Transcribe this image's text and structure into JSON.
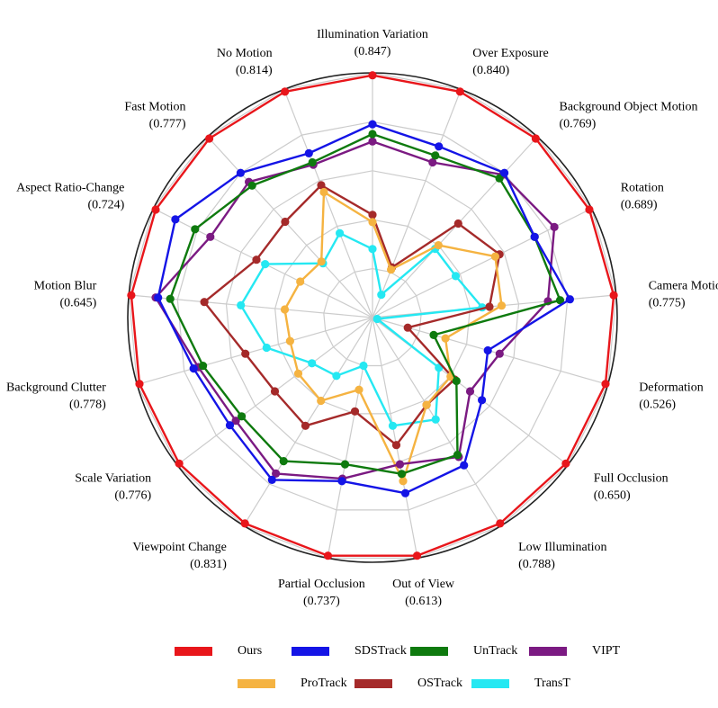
{
  "chart_data": {
    "type": "radar",
    "title": "",
    "categories": [
      {
        "name": "Illumination Variation",
        "value": "(0.847)"
      },
      {
        "name": "Over Exposure",
        "value": "(0.840)"
      },
      {
        "name": "Background Object Motion",
        "value": "(0.769)"
      },
      {
        "name": "Rotation",
        "value": "(0.689)"
      },
      {
        "name": "Camera Motion",
        "value": "(0.775)"
      },
      {
        "name": "Deformation",
        "value": "(0.526)"
      },
      {
        "name": "Full Occlusion",
        "value": "(0.650)"
      },
      {
        "name": "Low Illumination",
        "value": "(0.788)"
      },
      {
        "name": "Out of View",
        "value": "(0.613)"
      },
      {
        "name": "Partial Occlusion",
        "value": "(0.737)"
      },
      {
        "name": "Viewpoint Change",
        "value": "(0.831)"
      },
      {
        "name": "Scale Variation",
        "value": "(0.776)"
      },
      {
        "name": "Background Clutter",
        "value": "(0.778)"
      },
      {
        "name": "Motion Blur",
        "value": "(0.645)"
      },
      {
        "name": "Aspect Ratio-Change",
        "value": "(0.724)"
      },
      {
        "name": "Fast Motion",
        "value": "(0.777)"
      },
      {
        "name": "No Motion",
        "value": "(0.814)"
      }
    ],
    "range": [
      0,
      1
    ],
    "grid": true,
    "legend_position": "bottom",
    "series": [
      {
        "name": "Ours",
        "color": "#e8161b",
        "values": [
          0.99,
          0.99,
          0.99,
          0.99,
          0.99,
          0.99,
          0.99,
          0.99,
          0.99,
          0.99,
          0.99,
          0.99,
          0.99,
          0.99,
          0.99,
          0.99,
          0.99
        ]
      },
      {
        "name": "SDSTrack",
        "color": "#1414e6",
        "values": [
          0.79,
          0.75,
          0.8,
          0.74,
          0.81,
          0.49,
          0.56,
          0.71,
          0.73,
          0.68,
          0.78,
          0.73,
          0.76,
          0.88,
          0.9,
          0.8,
          0.72
        ]
      },
      {
        "name": "UnTrack",
        "color": "#0e7a0e",
        "values": [
          0.75,
          0.71,
          0.77,
          0.74,
          0.77,
          0.26,
          0.43,
          0.66,
          0.65,
          0.61,
          0.69,
          0.67,
          0.72,
          0.83,
          0.81,
          0.73,
          0.68
        ]
      },
      {
        "name": "VIPT",
        "color": "#7b1a82",
        "values": [
          0.72,
          0.68,
          0.79,
          0.83,
          0.72,
          0.54,
          0.5,
          0.67,
          0.61,
          0.67,
          0.75,
          0.7,
          0.74,
          0.89,
          0.74,
          0.75,
          0.67
        ]
      },
      {
        "name": "ProTrack",
        "color": "#f5b341",
        "values": [
          0.39,
          0.21,
          0.4,
          0.56,
          0.53,
          0.31,
          0.4,
          0.42,
          0.68,
          0.3,
          0.4,
          0.38,
          0.35,
          0.36,
          0.33,
          0.31,
          0.55
        ]
      },
      {
        "name": "OSTrack",
        "color": "#a52a2a",
        "values": [
          0.42,
          0.22,
          0.52,
          0.58,
          0.48,
          0.15,
          0.42,
          0.42,
          0.53,
          0.39,
          0.52,
          0.5,
          0.54,
          0.69,
          0.53,
          0.53,
          0.58
        ]
      },
      {
        "name": "TransT",
        "color": "#25e8f2",
        "values": [
          0.28,
          0.1,
          0.38,
          0.38,
          0.45,
          0.02,
          0.34,
          0.49,
          0.45,
          0.2,
          0.28,
          0.31,
          0.45,
          0.54,
          0.49,
          0.3,
          0.37
        ]
      }
    ]
  }
}
